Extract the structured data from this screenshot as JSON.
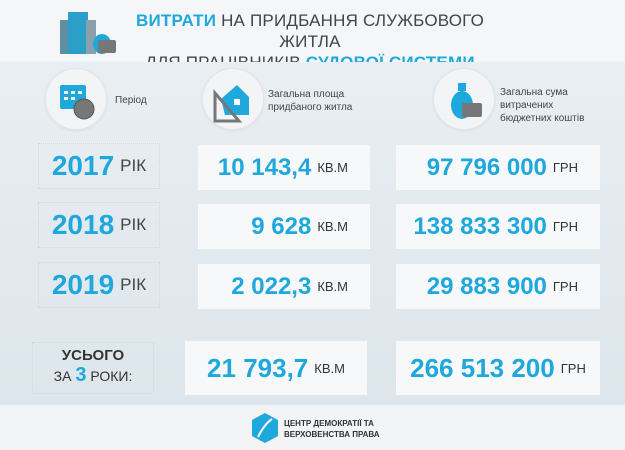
{
  "header": {
    "title_accent1": "ВИТРАТИ",
    "title_rest1": " НА ПРИДБАННЯ СЛУЖБОВОГО ЖИТЛА",
    "title_rest2": "ДЛЯ ПРАЦІВНИКІВ ",
    "title_accent2": "СУДОВОЇ СИСТЕМИ"
  },
  "columns": {
    "period": "Період",
    "area": "Загальна площа придбаного житла",
    "sum": "Загальна сума витрачених бюджетних коштів"
  },
  "rows": [
    {
      "year": "2017",
      "year_unit": "РІК",
      "area": "10 143,4",
      "area_unit": "КВ.М",
      "sum": "97 796 000",
      "sum_unit": "ГРН"
    },
    {
      "year": "2018",
      "year_unit": "РІК",
      "area": "9 628",
      "area_unit": "КВ.М",
      "sum": "138 833 300",
      "sum_unit": "ГРН"
    },
    {
      "year": "2019",
      "year_unit": "РІК",
      "area": "2 022,3",
      "area_unit": "КВ.М",
      "sum": "29 883 900",
      "sum_unit": "ГРН"
    }
  ],
  "total": {
    "label1": "УСЬОГО",
    "label2a": "ЗА ",
    "years": "3",
    "label2b": " РОКИ:",
    "area": "21 793,7",
    "area_unit": "КВ.М",
    "sum": "266 513 200",
    "sum_unit": "ГРН"
  },
  "footer": {
    "logo_text1": "ЦЕНТР ДЕМОКРАТІЇ ТА",
    "logo_text2": "ВЕРХОВЕНСТВА ПРАВА"
  },
  "colors": {
    "accent": "#1fa8dc"
  }
}
